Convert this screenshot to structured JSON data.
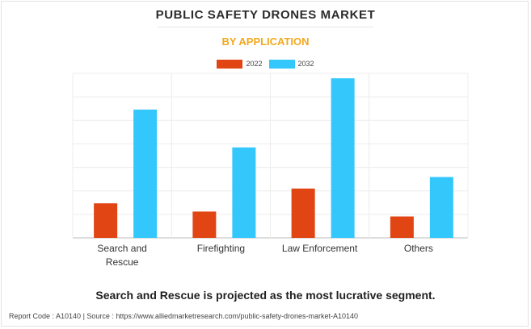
{
  "header": {
    "title": "PUBLIC SAFETY DRONES MARKET",
    "subtitle": "BY APPLICATION"
  },
  "colors": {
    "series_2022": "#e04513",
    "series_2032": "#33c7fc",
    "subtitle": "#f2a81d"
  },
  "chart_data": {
    "type": "bar",
    "categories": [
      "Search and Rescue",
      "Firefighting",
      "Law Enforcement",
      "Others"
    ],
    "series": [
      {
        "name": "2022",
        "values": [
          21,
          16,
          30,
          13
        ]
      },
      {
        "name": "2032",
        "values": [
          78,
          55,
          97,
          37
        ]
      }
    ],
    "ylim": [
      0,
      100
    ],
    "grid": true,
    "legend_position": "top-center"
  },
  "footer": {
    "note": "Search and Rescue is projected as the most lucrative segment.",
    "source": "Report Code : A10140  |  Source : https://www.alliedmarketresearch.com/public-safety-drones-market-A10140"
  }
}
